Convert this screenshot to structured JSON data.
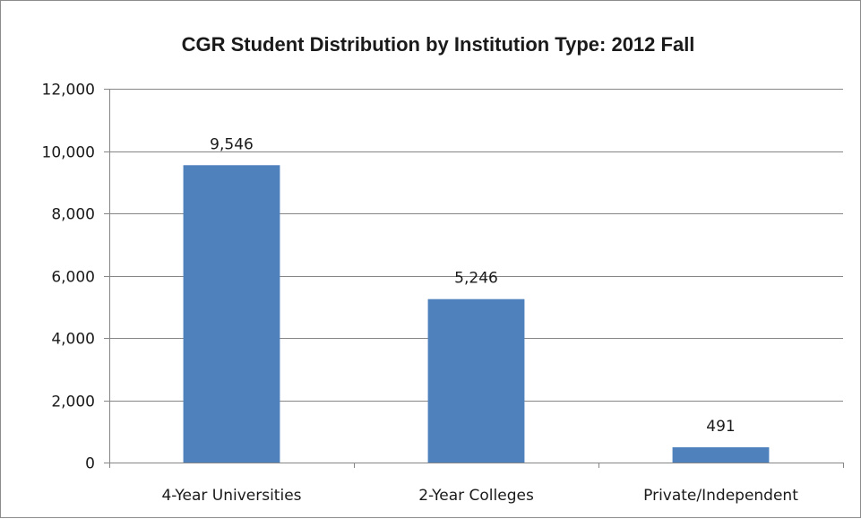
{
  "chart_data": {
    "type": "bar",
    "title": "CGR Student Distribution by Institution Type: 2012 Fall",
    "xlabel": "",
    "ylabel": "",
    "categories": [
      "4-Year Universities",
      "2-Year Colleges",
      "Private/Independent"
    ],
    "values": [
      9546,
      5246,
      491
    ],
    "data_labels": [
      "9,546",
      "5,246",
      "491"
    ],
    "ylim": [
      0,
      12000
    ],
    "yticks": [
      0,
      2000,
      4000,
      6000,
      8000,
      10000,
      12000
    ],
    "ytick_labels": [
      "0",
      "2,000",
      "4,000",
      "6,000",
      "8,000",
      "10,000",
      "12,000"
    ],
    "grid": true,
    "legend": "none",
    "bar_color": "#4f81bd",
    "grid_color": "#868686"
  }
}
